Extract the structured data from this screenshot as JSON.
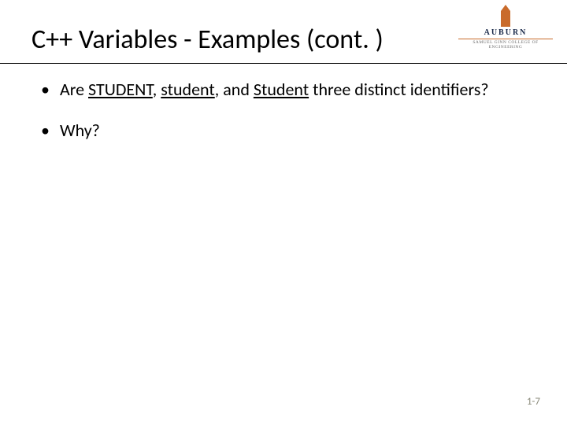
{
  "logo": {
    "name": "AUBURN",
    "subtitle": "SAMUEL GINN COLLEGE OF ENGINEERING",
    "accent_color": "#c96b2b",
    "text_color": "#1a2a4a"
  },
  "title": "C++ Variables - Examples (cont. )",
  "bullets": {
    "b1_pre": "Are ",
    "b1_u1": "STUDENT",
    "b1_mid1": ", ",
    "b1_u2": "student",
    "b1_mid2": ", and ",
    "b1_u3": "Student",
    "b1_post": " three distinct identifiers?",
    "b2": "Why?"
  },
  "page_number": "1-7",
  "style": {
    "title_fontsize": 34,
    "body_fontsize": 22,
    "pagenum_fontsize": 13,
    "pagenum_color": "#8a8a7a",
    "background": "#ffffff",
    "underline_color": "#000000"
  }
}
